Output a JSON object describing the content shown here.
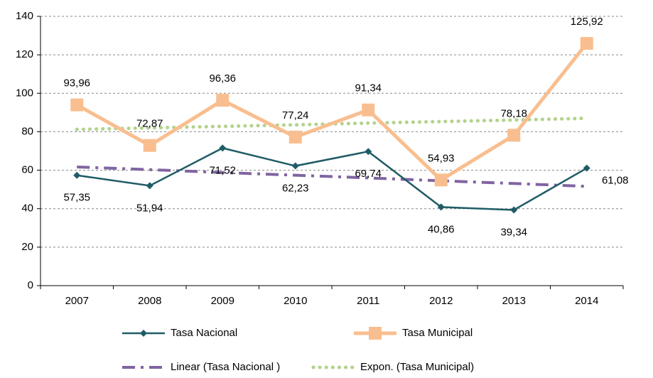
{
  "chart_data": {
    "type": "line",
    "categories": [
      "2007",
      "2008",
      "2009",
      "2010",
      "2011",
      "2012",
      "2013",
      "2014"
    ],
    "series": [
      {
        "name": "Tasa Nacional",
        "color": "#1f5c66",
        "marker": "diamond",
        "line_style": "solid",
        "label_position": "below",
        "values": [
          57.35,
          51.94,
          71.52,
          62.23,
          69.74,
          40.86,
          39.34,
          61.08
        ],
        "value_labels": [
          "57,35",
          "51,94",
          "71,52",
          "62,23",
          "69,74",
          "40,86",
          "39,34",
          "61,08"
        ]
      },
      {
        "name": "Tasa Municipal",
        "color": "#f9be8f",
        "marker": "square",
        "line_style": "solid",
        "label_position": "above",
        "values": [
          93.96,
          72.87,
          96.36,
          77.24,
          91.34,
          54.93,
          78.18,
          125.92
        ],
        "value_labels": [
          "93,96",
          "72,87",
          "96,36",
          "77,24",
          "91,34",
          "54,93",
          "78,18",
          "125,92"
        ]
      },
      {
        "name": "Linear (Tasa Nacional )",
        "color": "#8064a2",
        "marker": "none",
        "line_style": "dashdot",
        "values": [
          61.7,
          60.3,
          58.8,
          57.4,
          56.0,
          54.5,
          53.1,
          51.6
        ]
      },
      {
        "name": "Expon. (Tasa Municipal)",
        "color": "#b3d28c",
        "marker": "none",
        "line_style": "dotted",
        "values": [
          81.2,
          82.0,
          82.8,
          83.6,
          84.5,
          85.3,
          86.1,
          87.0
        ]
      }
    ],
    "ylim": [
      0,
      140
    ],
    "yticks": [
      0,
      20,
      40,
      60,
      80,
      100,
      120,
      140
    ],
    "grid": true,
    "legend": "bottom"
  }
}
